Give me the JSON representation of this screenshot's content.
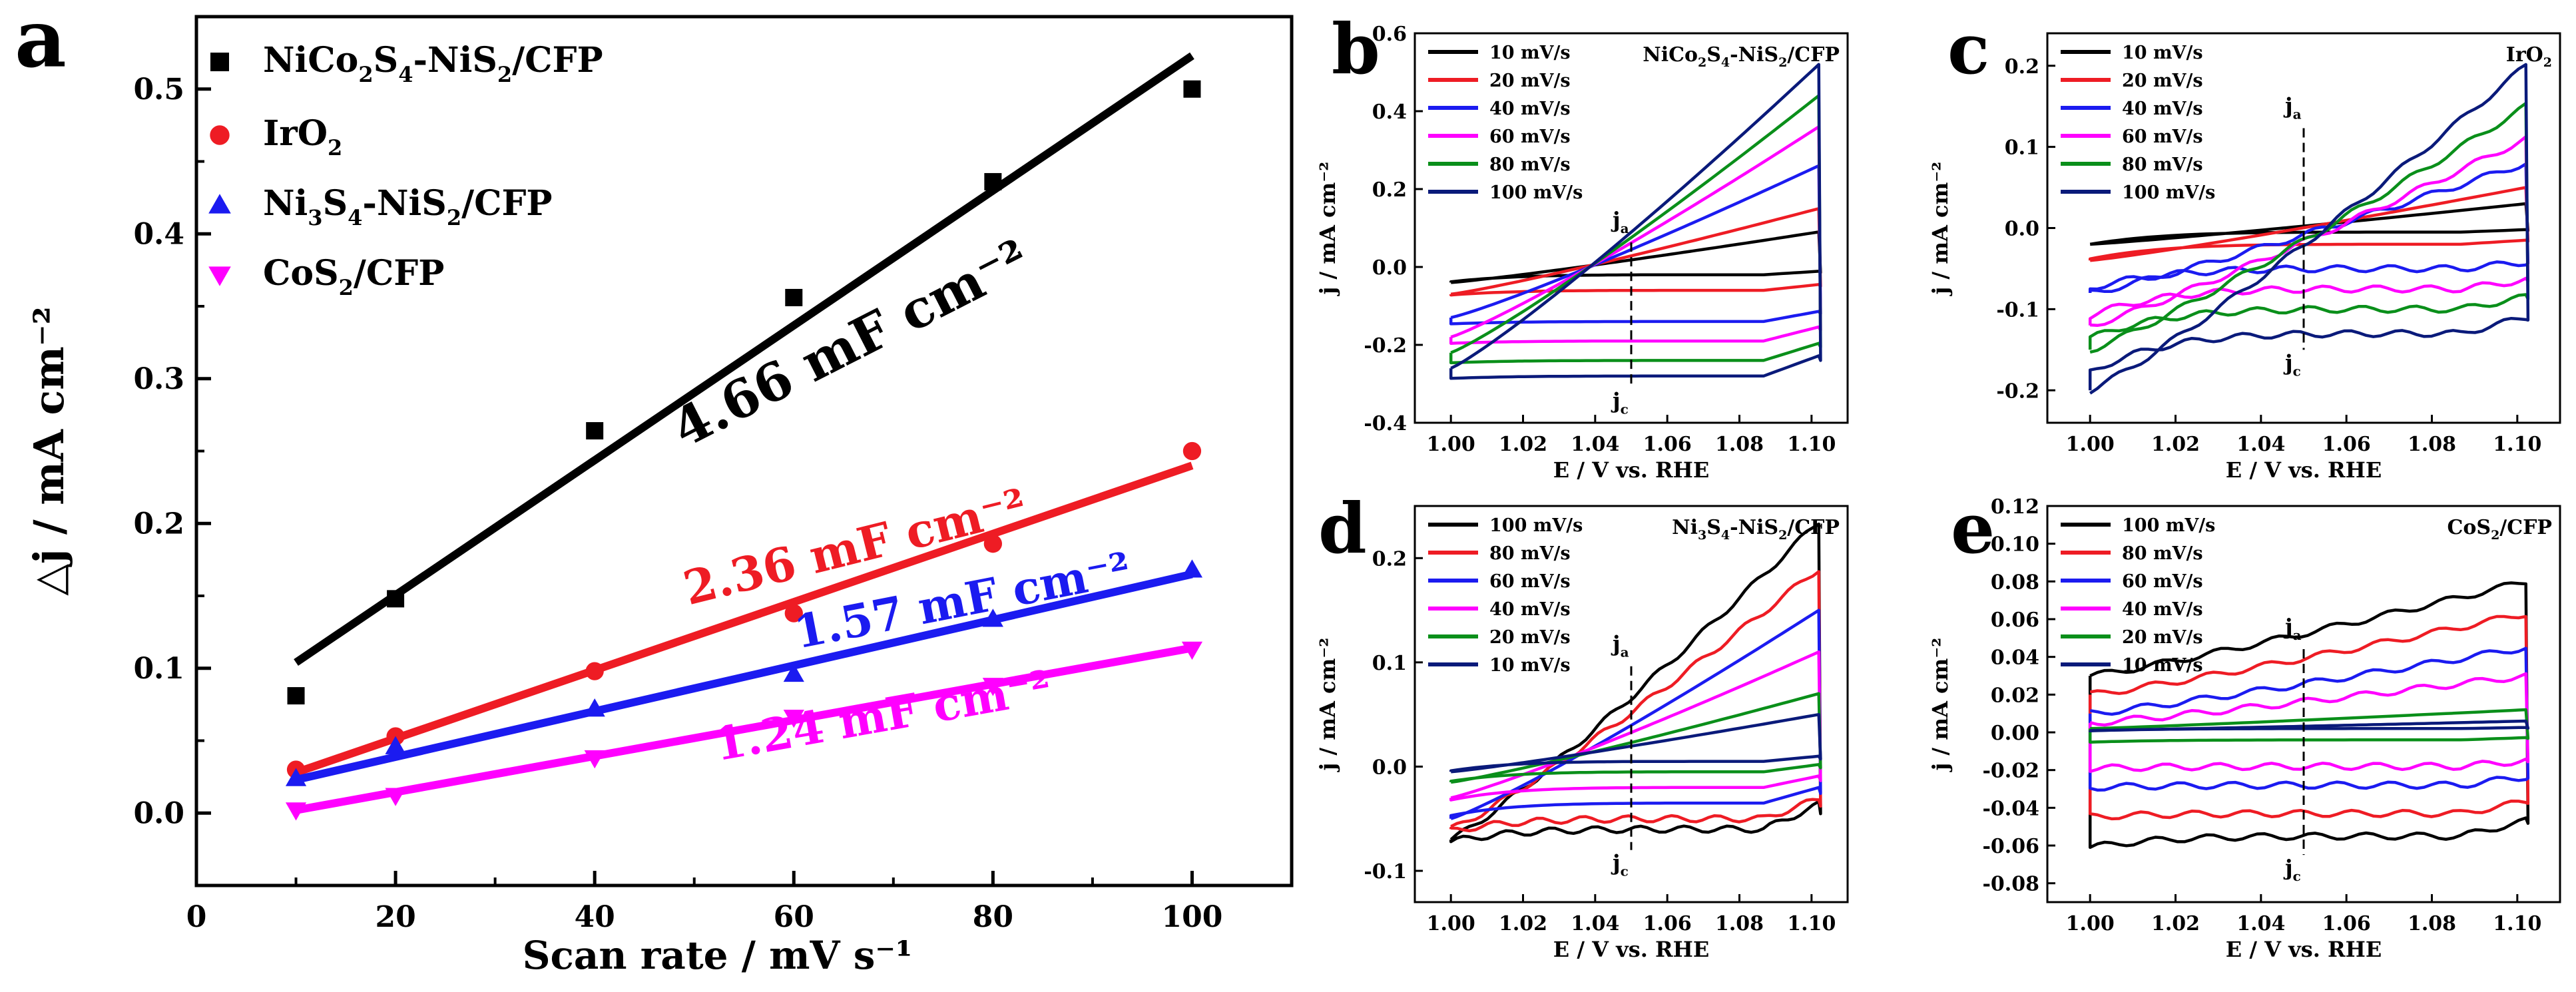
{
  "chart_data": [
    {
      "panel": "a",
      "type": "scatter",
      "title": "",
      "xlabel": "Scan rate / mV s⁻¹",
      "ylabel": "△j / mA cm⁻²",
      "xlim": [
        0,
        110
      ],
      "ylim": [
        -0.05,
        0.55
      ],
      "xticks": [
        "0",
        "20",
        "40",
        "60",
        "80",
        "100"
      ],
      "yticks": [
        "0.0",
        "0.1",
        "0.2",
        "0.3",
        "0.4",
        "0.5"
      ],
      "series": [
        {
          "name": "NiCo₂S₄-NiS₂/CFP",
          "legend_main": "NiCo",
          "legend_parts": [
            [
              "NiCo",
              ""
            ],
            [
              "2",
              "sub"
            ],
            [
              "S",
              ""
            ],
            [
              "4",
              "sub"
            ],
            [
              "-NiS",
              ""
            ],
            [
              "2",
              "sub"
            ],
            [
              "/CFP",
              ""
            ]
          ],
          "color": "#000000",
          "marker": "square",
          "x": [
            10,
            20,
            40,
            60,
            80,
            100
          ],
          "values": [
            0.081,
            0.148,
            0.264,
            0.356,
            0.436,
            0.5
          ],
          "fit": [
            0.104,
            0.523
          ],
          "slope_label": "4.66 mF cm⁻²"
        },
        {
          "name": "IrO₂",
          "legend_main": "IrO",
          "legend_parts": [
            [
              "IrO",
              ""
            ],
            [
              "2",
              "sub"
            ]
          ],
          "color": "#ee1c24",
          "marker": "circle",
          "x": [
            10,
            20,
            40,
            60,
            80,
            100
          ],
          "values": [
            0.03,
            0.053,
            0.098,
            0.138,
            0.186,
            0.25
          ],
          "fit": [
            0.028,
            0.24
          ],
          "slope_label": "2.36 mF cm⁻²"
        },
        {
          "name": "Ni₃S₄-NiS₂/CFP",
          "legend_main": "Ni",
          "legend_parts": [
            [
              "Ni",
              ""
            ],
            [
              "3",
              "sub"
            ],
            [
              "S",
              ""
            ],
            [
              "4",
              "sub"
            ],
            [
              "-NiS",
              ""
            ],
            [
              "2",
              "sub"
            ],
            [
              "/CFP",
              ""
            ]
          ],
          "color": "#1b1bf0",
          "marker": "triangle-up",
          "x": [
            10,
            20,
            40,
            60,
            80,
            100
          ],
          "values": [
            0.024,
            0.046,
            0.072,
            0.096,
            0.134,
            0.168
          ],
          "fit": [
            0.023,
            0.165
          ],
          "slope_label": "1.57 mF cm⁻²"
        },
        {
          "name": "CoS₂/CFP",
          "legend_main": "CoS",
          "legend_parts": [
            [
              "CoS",
              ""
            ],
            [
              "2",
              "sub"
            ],
            [
              "/CFP",
              ""
            ]
          ],
          "color": "#ff00ff",
          "marker": "triangle-down",
          "x": [
            10,
            20,
            40,
            60,
            80,
            100
          ],
          "values": [
            0.002,
            0.012,
            0.038,
            0.066,
            0.088,
            0.113
          ],
          "fit": [
            0.002,
            0.114
          ],
          "slope_label": "1.24 mF cm⁻²"
        }
      ]
    },
    {
      "panel": "b",
      "type": "line",
      "label": "NiCo₂S₄-NiS₂/CFP",
      "label_parts": [
        [
          "NiCo",
          ""
        ],
        [
          "2",
          "sub"
        ],
        [
          "S",
          ""
        ],
        [
          "4",
          "sub"
        ],
        [
          "-NiS",
          ""
        ],
        [
          "2",
          "sub"
        ],
        [
          "/CFP",
          ""
        ]
      ],
      "xlabel": "E / V vs. RHE",
      "ylabel": "j / mA cm⁻²",
      "xlim": [
        0.99,
        1.11
      ],
      "ylim": [
        -0.4,
        0.6
      ],
      "xticks": [
        "1.00",
        "1.02",
        "1.04",
        "1.06",
        "1.08",
        "1.10"
      ],
      "xtick_values": [
        1.0,
        1.02,
        1.04,
        1.06,
        1.08,
        1.1
      ],
      "yticks": [
        "-0.4",
        "-0.2",
        "0.0",
        "0.2",
        "0.4",
        "0.6"
      ],
      "ytick_values": [
        -0.4,
        -0.2,
        0.0,
        0.2,
        0.4,
        0.6
      ],
      "ja": "j",
      "jc": "j",
      "ja_sub": "a",
      "jc_sub": "c",
      "ja_y": 0.14,
      "jc_y": -0.31,
      "series": [
        {
          "name": "10 mV/s",
          "color": "#000000",
          "left_top": -0.04,
          "right_top": 0.09,
          "left_bot": -0.05,
          "bot_flat": -0.02,
          "wiggle": false
        },
        {
          "name": "20 mV/s",
          "color": "#ee1c24",
          "left_top": -0.07,
          "right_top": 0.15,
          "left_bot": -0.08,
          "bot_flat": -0.06,
          "wiggle": false
        },
        {
          "name": "40 mV/s",
          "color": "#1b1bf0",
          "left_top": -0.13,
          "right_top": 0.26,
          "left_bot": -0.15,
          "bot_flat": -0.14,
          "wiggle": false
        },
        {
          "name": "60 mV/s",
          "color": "#ff00ff",
          "left_top": -0.18,
          "right_top": 0.36,
          "left_bot": -0.2,
          "bot_flat": -0.19,
          "wiggle": false
        },
        {
          "name": "80 mV/s",
          "color": "#0a8f1a",
          "left_top": -0.22,
          "right_top": 0.44,
          "left_bot": -0.25,
          "bot_flat": -0.24,
          "wiggle": false
        },
        {
          "name": "100 mV/s",
          "color": "#0a1a7a",
          "left_top": -0.26,
          "right_top": 0.52,
          "left_bot": -0.29,
          "bot_flat": -0.28,
          "wiggle": false
        }
      ]
    },
    {
      "panel": "c",
      "type": "line",
      "label": "IrO₂",
      "label_parts": [
        [
          "IrO",
          ""
        ],
        [
          "2",
          "sub"
        ]
      ],
      "xlabel": "E / V vs. RHE",
      "ylabel": "j / mA cm⁻²",
      "xlim": [
        0.99,
        1.11
      ],
      "ylim": [
        -0.24,
        0.24
      ],
      "xticks": [
        "1.00",
        "1.02",
        "1.04",
        "1.06",
        "1.08",
        "1.10"
      ],
      "xtick_values": [
        1.0,
        1.02,
        1.04,
        1.06,
        1.08,
        1.1
      ],
      "yticks": [
        "-0.2",
        "-0.1",
        "0.0",
        "0.1",
        "0.2"
      ],
      "ytick_values": [
        -0.2,
        -0.1,
        0.0,
        0.1,
        0.2
      ],
      "ja": "j",
      "jc": "j",
      "ja_sub": "a",
      "jc_sub": "c",
      "ja_y": 0.16,
      "jc_y": -0.15,
      "series": [
        {
          "name": "10 mV/s",
          "color": "#000000",
          "left_top": -0.02,
          "right_top": 0.03,
          "left_bot": -0.03,
          "bot_flat": -0.005,
          "wiggle": false
        },
        {
          "name": "20 mV/s",
          "color": "#ee1c24",
          "left_top": -0.04,
          "right_top": 0.05,
          "left_bot": -0.05,
          "bot_flat": -0.02,
          "wiggle": false
        },
        {
          "name": "40 mV/s",
          "color": "#1b1bf0",
          "left_top": -0.08,
          "right_top": 0.08,
          "left_bot": -0.09,
          "bot_flat": -0.05,
          "wiggle": true
        },
        {
          "name": "60 mV/s",
          "color": "#ff00ff",
          "left_top": -0.12,
          "right_top": 0.11,
          "left_bot": -0.13,
          "bot_flat": -0.075,
          "wiggle": true
        },
        {
          "name": "80 mV/s",
          "color": "#0a8f1a",
          "left_top": -0.15,
          "right_top": 0.15,
          "left_bot": -0.16,
          "bot_flat": -0.1,
          "wiggle": true
        },
        {
          "name": "100 mV/s",
          "color": "#0a1a7a",
          "left_top": -0.2,
          "right_top": 0.2,
          "left_bot": -0.21,
          "bot_flat": -0.13,
          "wiggle": true
        }
      ]
    },
    {
      "panel": "d",
      "type": "line",
      "label": "Ni₃S₄-NiS₂/CFP",
      "label_parts": [
        [
          "Ni",
          ""
        ],
        [
          "3",
          "sub"
        ],
        [
          "S",
          ""
        ],
        [
          "4",
          "sub"
        ],
        [
          "-NiS",
          ""
        ],
        [
          "2",
          "sub"
        ],
        [
          "/CFP",
          ""
        ]
      ],
      "xlabel": "E / V vs. RHE",
      "ylabel": "j / mA cm⁻²",
      "xlim": [
        0.99,
        1.11
      ],
      "ylim": [
        -0.13,
        0.25
      ],
      "xticks": [
        "1.00",
        "1.02",
        "1.04",
        "1.06",
        "1.08",
        "1.10"
      ],
      "xtick_values": [
        1.0,
        1.02,
        1.04,
        1.06,
        1.08,
        1.1
      ],
      "yticks": [
        "-0.1",
        "0.0",
        "0.1",
        "0.2"
      ],
      "ytick_values": [
        -0.1,
        0.0,
        0.1,
        0.2
      ],
      "ja": "j",
      "jc": "j",
      "ja_sub": "a",
      "jc_sub": "c",
      "ja_y": 0.125,
      "jc_y": -0.08,
      "series": [
        {
          "name": "100 mV/s",
          "color": "#000000",
          "left_top": -0.07,
          "right_top": 0.235,
          "left_bot": -0.08,
          "bot_flat": -0.06,
          "wiggle": true
        },
        {
          "name": "80 mV/s",
          "color": "#ee1c24",
          "left_top": -0.06,
          "right_top": 0.19,
          "left_bot": -0.07,
          "bot_flat": -0.05,
          "wiggle": true
        },
        {
          "name": "60 mV/s",
          "color": "#1b1bf0",
          "left_top": -0.05,
          "right_top": 0.15,
          "left_bot": -0.055,
          "bot_flat": -0.035,
          "wiggle": false
        },
        {
          "name": "40 mV/s",
          "color": "#ff00ff",
          "left_top": -0.03,
          "right_top": 0.11,
          "left_bot": -0.04,
          "bot_flat": -0.02,
          "wiggle": false
        },
        {
          "name": "20 mV/s",
          "color": "#0a8f1a",
          "left_top": -0.015,
          "right_top": 0.07,
          "left_bot": -0.02,
          "bot_flat": -0.005,
          "wiggle": false
        },
        {
          "name": "10 mV/s",
          "color": "#0a1a7a",
          "left_top": -0.005,
          "right_top": 0.05,
          "left_bot": -0.01,
          "bot_flat": 0.005,
          "wiggle": false
        }
      ]
    },
    {
      "panel": "e",
      "type": "line",
      "label": "CoS₂/CFP",
      "label_parts": [
        [
          "CoS",
          ""
        ],
        [
          "2",
          "sub"
        ],
        [
          "/CFP",
          ""
        ]
      ],
      "xlabel": "E / V vs. RHE",
      "ylabel": "j / mA cm⁻²",
      "xlim": [
        0.99,
        1.11
      ],
      "ylim": [
        -0.09,
        0.12
      ],
      "xticks": [
        "1.00",
        "1.02",
        "1.04",
        "1.06",
        "1.08",
        "1.10"
      ],
      "xtick_values": [
        1.0,
        1.02,
        1.04,
        1.06,
        1.08,
        1.1
      ],
      "yticks": [
        "-0.08",
        "-0.06",
        "-0.04",
        "-0.02",
        "0.00",
        "0.02",
        "0.04",
        "0.06",
        "0.08",
        "0.10",
        "0.12"
      ],
      "ytick_values": [
        -0.08,
        -0.06,
        -0.04,
        -0.02,
        0.0,
        0.02,
        0.04,
        0.06,
        0.08,
        0.1,
        0.12
      ],
      "ja": "j",
      "jc": "j",
      "ja_sub": "a",
      "jc_sub": "c",
      "ja_y": 0.06,
      "jc_y": -0.065,
      "series": [
        {
          "name": "100 mV/s",
          "color": "#000000",
          "left_top": 0.03,
          "right_top": 0.08,
          "left_bot": -0.065,
          "bot_flat": -0.055,
          "wiggle": true
        },
        {
          "name": "80 mV/s",
          "color": "#ee1c24",
          "left_top": 0.02,
          "right_top": 0.063,
          "left_bot": -0.046,
          "bot_flat": -0.043,
          "wiggle": true
        },
        {
          "name": "60 mV/s",
          "color": "#1b1bf0",
          "left_top": 0.01,
          "right_top": 0.045,
          "left_bot": -0.03,
          "bot_flat": -0.028,
          "wiggle": true
        },
        {
          "name": "40 mV/s",
          "color": "#ff00ff",
          "left_top": 0.005,
          "right_top": 0.03,
          "left_bot": -0.02,
          "bot_flat": -0.018,
          "wiggle": true
        },
        {
          "name": "20 mV/s",
          "color": "#0a8f1a",
          "left_top": 0.002,
          "right_top": 0.012,
          "left_bot": -0.006,
          "bot_flat": -0.004,
          "wiggle": false
        },
        {
          "name": "10 mV/s",
          "color": "#0a1a7a",
          "left_top": 0.001,
          "right_top": 0.006,
          "left_bot": 0.0,
          "bot_flat": 0.002,
          "wiggle": false
        }
      ]
    }
  ]
}
